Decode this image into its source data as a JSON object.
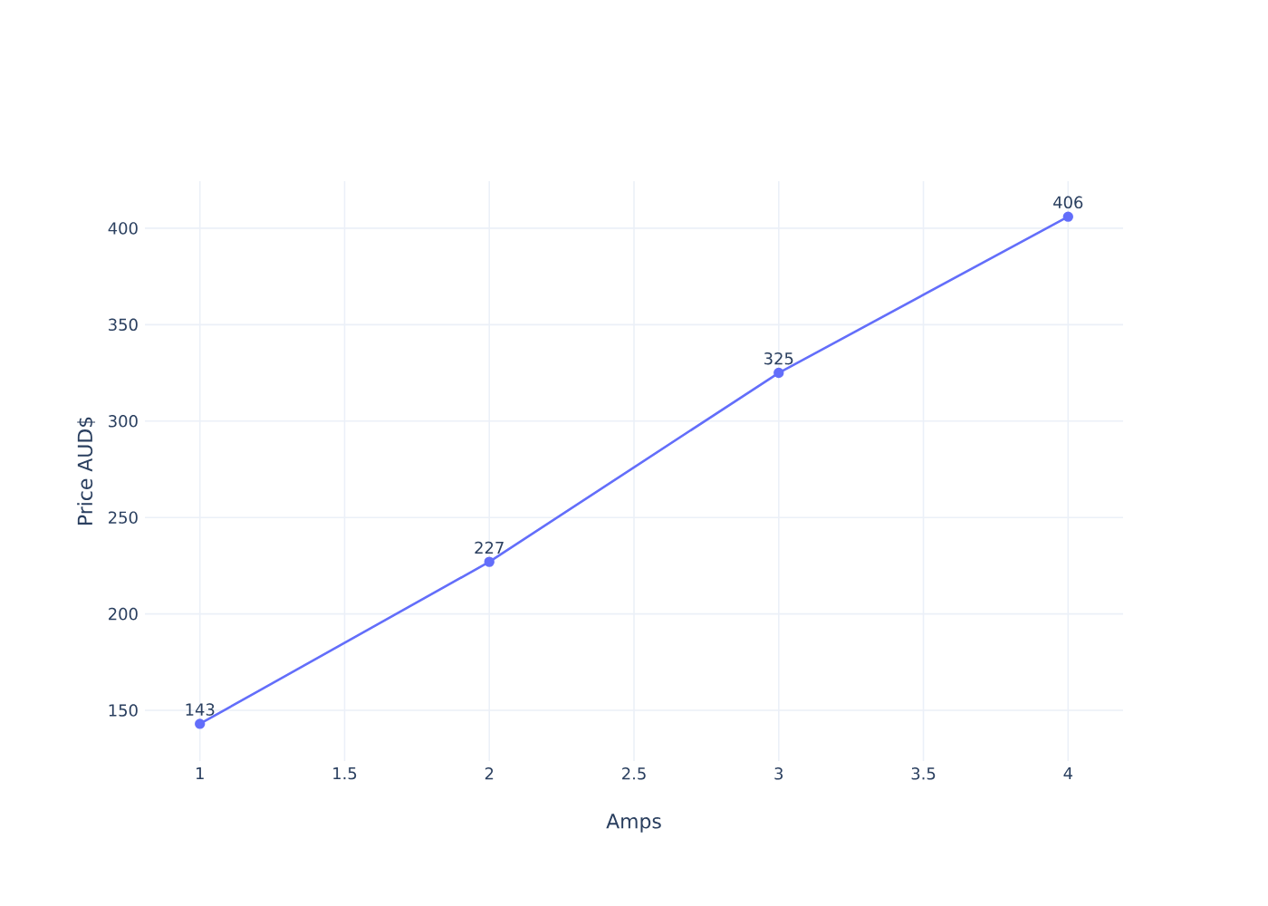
{
  "chart_data": {
    "type": "line",
    "xlabel": "Amps",
    "ylabel": "Price AUD$",
    "x": [
      1,
      2,
      3,
      4
    ],
    "series": [
      {
        "color": "#636efa",
        "values": [
          143,
          227,
          325,
          406
        ]
      }
    ],
    "xlim": [
      0.81,
      4.19
    ],
    "ylim": [
      123.7,
      424.4
    ],
    "xticks": [
      1,
      1.5,
      2,
      2.5,
      3,
      3.5,
      4
    ],
    "yticks": [
      150,
      200,
      250,
      300,
      350,
      400
    ],
    "grid": true,
    "marker": "circle",
    "line_style": "solid",
    "data_labels": true
  }
}
